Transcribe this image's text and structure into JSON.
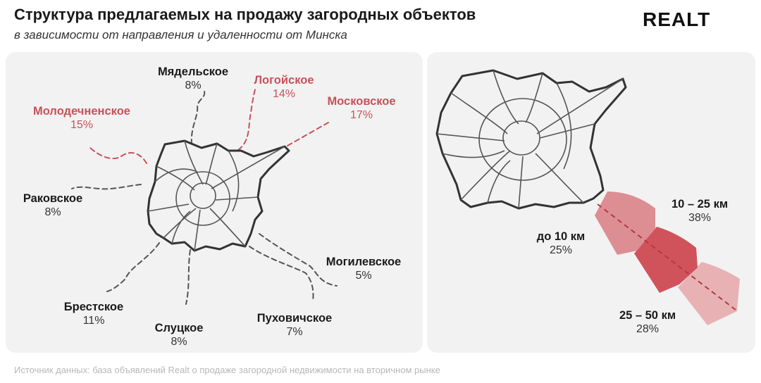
{
  "header": {
    "title": "Структура предлагаемых на продажу загородных объектов",
    "subtitle": "в зависимости от направления и удаленности от Минска",
    "logo": "REALT"
  },
  "colors": {
    "highlight": "#c8515a",
    "default_text": "#1a1a1a",
    "ring_near": "#dd8e92",
    "ring_mid": "#d0535c",
    "ring_far": "#e8b2b4",
    "panel": "#f2f2f2"
  },
  "chart_data": [
    {
      "type": "map",
      "directions": [
        {
          "name": "Мядельское",
          "value": 8,
          "label": "8%",
          "highlighted": false
        },
        {
          "name": "Логойское",
          "value": 14,
          "label": "14%",
          "highlighted": true
        },
        {
          "name": "Московское",
          "value": 17,
          "label": "17%",
          "highlighted": true
        },
        {
          "name": "Молодечненское",
          "value": 15,
          "label": "15%",
          "highlighted": true
        },
        {
          "name": "Раковское",
          "value": 8,
          "label": "8%",
          "highlighted": false
        },
        {
          "name": "Могилевское",
          "value": 5,
          "label": "5%",
          "highlighted": false
        },
        {
          "name": "Брестское",
          "value": 11,
          "label": "11%",
          "highlighted": false
        },
        {
          "name": "Слуцкое",
          "value": 8,
          "label": "8%",
          "highlighted": false
        },
        {
          "name": "Пуховичское",
          "value": 7,
          "label": "7%",
          "highlighted": false
        }
      ]
    },
    {
      "type": "pie",
      "distance_bands": [
        {
          "name": "до 10 км",
          "value": 25,
          "label": "25%"
        },
        {
          "name": "10 – 25 км",
          "value": 38,
          "label": "38%"
        },
        {
          "name": "25 – 50 км",
          "value": 28,
          "label": "28%"
        }
      ]
    }
  ],
  "footer": {
    "source": "Источник данных: база объявлений Realt о продаже загородной недвижимости на вторичном рынке"
  }
}
